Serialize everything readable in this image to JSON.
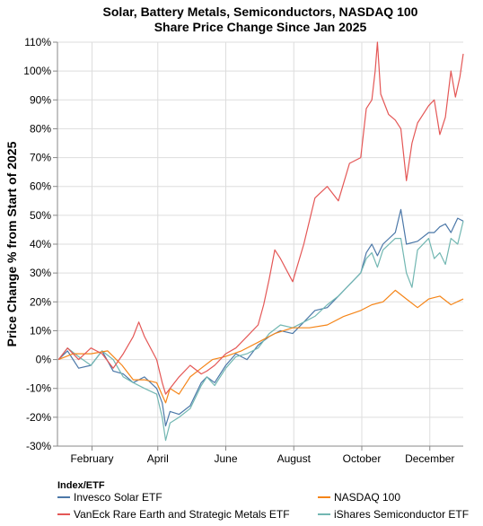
{
  "chart_data": {
    "type": "line",
    "title": "Solar, Battery Metals, Semiconductors, NASDAQ 100",
    "subtitle": "Share Price Change Since Jan 2025",
    "ylabel": "Price Change % from Start of 2025",
    "xlabel": "",
    "ylim": [
      -30,
      110
    ],
    "y_ticks": [
      -30,
      -20,
      -10,
      0,
      10,
      20,
      30,
      40,
      50,
      60,
      70,
      80,
      90,
      100,
      110
    ],
    "y_tick_labels": [
      "-30%",
      "-20%",
      "-10%",
      "0%",
      "10%",
      "20%",
      "30%",
      "40%",
      "50%",
      "60%",
      "70%",
      "80%",
      "90%",
      "100%",
      "110%"
    ],
    "x_domain": [
      "2025-01-01",
      "2025-12-31"
    ],
    "x_ticks": [
      {
        "date": "2025-02-01",
        "label": "February"
      },
      {
        "date": "2025-04-01",
        "label": "April"
      },
      {
        "date": "2025-06-01",
        "label": "June"
      },
      {
        "date": "2025-08-01",
        "label": "August"
      },
      {
        "date": "2025-10-01",
        "label": "October"
      },
      {
        "date": "2025-12-01",
        "label": "December"
      }
    ],
    "grid": true,
    "legend_title": "Index/ETF",
    "legend_position": "bottom",
    "series": [
      {
        "name": "Invesco Solar ETF",
        "color": "#4c78a8",
        "points": [
          [
            "2025-01-02",
            0
          ],
          [
            "2025-01-10",
            3
          ],
          [
            "2025-01-20",
            -3
          ],
          [
            "2025-01-31",
            -2
          ],
          [
            "2025-02-10",
            3
          ],
          [
            "2025-02-20",
            -4
          ],
          [
            "2025-03-01",
            -5
          ],
          [
            "2025-03-10",
            -8
          ],
          [
            "2025-03-20",
            -6
          ],
          [
            "2025-03-31",
            -10
          ],
          [
            "2025-04-05",
            -15
          ],
          [
            "2025-04-08",
            -23
          ],
          [
            "2025-04-12",
            -18
          ],
          [
            "2025-04-20",
            -19
          ],
          [
            "2025-04-30",
            -16
          ],
          [
            "2025-05-10",
            -8
          ],
          [
            "2025-05-15",
            -6
          ],
          [
            "2025-05-22",
            -8
          ],
          [
            "2025-06-01",
            -2
          ],
          [
            "2025-06-10",
            2
          ],
          [
            "2025-06-20",
            0
          ],
          [
            "2025-06-30",
            5
          ],
          [
            "2025-07-10",
            8
          ],
          [
            "2025-07-20",
            10
          ],
          [
            "2025-07-31",
            9
          ],
          [
            "2025-08-10",
            13
          ],
          [
            "2025-08-20",
            17
          ],
          [
            "2025-08-31",
            18
          ],
          [
            "2025-09-10",
            22
          ],
          [
            "2025-09-20",
            26
          ],
          [
            "2025-09-30",
            30
          ],
          [
            "2025-10-05",
            37
          ],
          [
            "2025-10-10",
            40
          ],
          [
            "2025-10-15",
            36
          ],
          [
            "2025-10-20",
            40
          ],
          [
            "2025-10-31",
            44
          ],
          [
            "2025-11-05",
            52
          ],
          [
            "2025-11-10",
            40
          ],
          [
            "2025-11-20",
            41
          ],
          [
            "2025-11-30",
            44
          ],
          [
            "2025-12-05",
            44
          ],
          [
            "2025-12-10",
            46
          ],
          [
            "2025-12-15",
            47
          ],
          [
            "2025-12-20",
            44
          ],
          [
            "2025-12-26",
            49
          ],
          [
            "2025-12-31",
            48
          ]
        ]
      },
      {
        "name": "VanEck Rare Earth and Strategic Metals ETF",
        "color": "#e45756",
        "points": [
          [
            "2025-01-02",
            0
          ],
          [
            "2025-01-10",
            4
          ],
          [
            "2025-01-20",
            0
          ],
          [
            "2025-01-31",
            4
          ],
          [
            "2025-02-10",
            2
          ],
          [
            "2025-02-20",
            -3
          ],
          [
            "2025-03-01",
            2
          ],
          [
            "2025-03-10",
            8
          ],
          [
            "2025-03-15",
            13
          ],
          [
            "2025-03-20",
            8
          ],
          [
            "2025-03-31",
            0
          ],
          [
            "2025-04-05",
            -8
          ],
          [
            "2025-04-08",
            -12
          ],
          [
            "2025-04-12",
            -10
          ],
          [
            "2025-04-20",
            -6
          ],
          [
            "2025-04-30",
            -2
          ],
          [
            "2025-05-10",
            -5
          ],
          [
            "2025-05-15",
            -4
          ],
          [
            "2025-05-22",
            -2
          ],
          [
            "2025-06-01",
            2
          ],
          [
            "2025-06-10",
            4
          ],
          [
            "2025-06-20",
            8
          ],
          [
            "2025-06-30",
            12
          ],
          [
            "2025-07-05",
            19
          ],
          [
            "2025-07-10",
            28
          ],
          [
            "2025-07-15",
            38
          ],
          [
            "2025-07-20",
            35
          ],
          [
            "2025-07-31",
            27
          ],
          [
            "2025-08-10",
            40
          ],
          [
            "2025-08-20",
            56
          ],
          [
            "2025-08-31",
            60
          ],
          [
            "2025-09-10",
            55
          ],
          [
            "2025-09-20",
            68
          ],
          [
            "2025-09-30",
            70
          ],
          [
            "2025-10-05",
            87
          ],
          [
            "2025-10-10",
            90
          ],
          [
            "2025-10-13",
            100
          ],
          [
            "2025-10-15",
            110
          ],
          [
            "2025-10-18",
            92
          ],
          [
            "2025-10-25",
            85
          ],
          [
            "2025-10-31",
            83
          ],
          [
            "2025-11-05",
            80
          ],
          [
            "2025-11-10",
            62
          ],
          [
            "2025-11-15",
            75
          ],
          [
            "2025-11-20",
            82
          ],
          [
            "2025-11-30",
            88
          ],
          [
            "2025-12-05",
            90
          ],
          [
            "2025-12-10",
            78
          ],
          [
            "2025-12-15",
            84
          ],
          [
            "2025-12-20",
            100
          ],
          [
            "2025-12-24",
            91
          ],
          [
            "2025-12-28",
            98
          ],
          [
            "2025-12-31",
            106
          ]
        ]
      },
      {
        "name": "NASDAQ 100",
        "color": "#f58518",
        "points": [
          [
            "2025-01-02",
            0
          ],
          [
            "2025-01-15",
            2
          ],
          [
            "2025-01-31",
            2
          ],
          [
            "2025-02-15",
            3
          ],
          [
            "2025-02-28",
            -2
          ],
          [
            "2025-03-10",
            -7
          ],
          [
            "2025-03-20",
            -7
          ],
          [
            "2025-03-31",
            -8
          ],
          [
            "2025-04-08",
            -15
          ],
          [
            "2025-04-12",
            -10
          ],
          [
            "2025-04-20",
            -12
          ],
          [
            "2025-04-30",
            -6
          ],
          [
            "2025-05-10",
            -3
          ],
          [
            "2025-05-20",
            0
          ],
          [
            "2025-05-31",
            1
          ],
          [
            "2025-06-15",
            3
          ],
          [
            "2025-06-30",
            6
          ],
          [
            "2025-07-15",
            9
          ],
          [
            "2025-07-31",
            11
          ],
          [
            "2025-08-15",
            11
          ],
          [
            "2025-08-31",
            12
          ],
          [
            "2025-09-15",
            15
          ],
          [
            "2025-09-30",
            17
          ],
          [
            "2025-10-10",
            19
          ],
          [
            "2025-10-20",
            20
          ],
          [
            "2025-10-31",
            24
          ],
          [
            "2025-11-10",
            21
          ],
          [
            "2025-11-20",
            18
          ],
          [
            "2025-11-30",
            21
          ],
          [
            "2025-12-10",
            22
          ],
          [
            "2025-12-20",
            19
          ],
          [
            "2025-12-31",
            21
          ]
        ]
      },
      {
        "name": "iShares Semiconductor ETF",
        "color": "#72b7b2",
        "points": [
          [
            "2025-01-02",
            0
          ],
          [
            "2025-01-10",
            4
          ],
          [
            "2025-01-20",
            1
          ],
          [
            "2025-01-31",
            -2
          ],
          [
            "2025-02-10",
            3
          ],
          [
            "2025-02-20",
            0
          ],
          [
            "2025-03-01",
            -6
          ],
          [
            "2025-03-10",
            -8
          ],
          [
            "2025-03-20",
            -10
          ],
          [
            "2025-03-31",
            -12
          ],
          [
            "2025-04-05",
            -20
          ],
          [
            "2025-04-08",
            -28
          ],
          [
            "2025-04-12",
            -22
          ],
          [
            "2025-04-20",
            -20
          ],
          [
            "2025-04-30",
            -17
          ],
          [
            "2025-05-10",
            -9
          ],
          [
            "2025-05-15",
            -6
          ],
          [
            "2025-05-22",
            -9
          ],
          [
            "2025-06-01",
            -3
          ],
          [
            "2025-06-10",
            1
          ],
          [
            "2025-06-20",
            2
          ],
          [
            "2025-06-30",
            4
          ],
          [
            "2025-07-10",
            9
          ],
          [
            "2025-07-20",
            12
          ],
          [
            "2025-07-31",
            11
          ],
          [
            "2025-08-10",
            13
          ],
          [
            "2025-08-20",
            15
          ],
          [
            "2025-08-31",
            19
          ],
          [
            "2025-09-10",
            22
          ],
          [
            "2025-09-20",
            26
          ],
          [
            "2025-09-30",
            30
          ],
          [
            "2025-10-05",
            35
          ],
          [
            "2025-10-10",
            37
          ],
          [
            "2025-10-15",
            32
          ],
          [
            "2025-10-20",
            38
          ],
          [
            "2025-10-31",
            42
          ],
          [
            "2025-11-05",
            42
          ],
          [
            "2025-11-10",
            30
          ],
          [
            "2025-11-15",
            25
          ],
          [
            "2025-11-20",
            38
          ],
          [
            "2025-11-30",
            42
          ],
          [
            "2025-12-05",
            35
          ],
          [
            "2025-12-10",
            37
          ],
          [
            "2025-12-15",
            33
          ],
          [
            "2025-12-20",
            42
          ],
          [
            "2025-12-26",
            40
          ],
          [
            "2025-12-31",
            48
          ]
        ]
      }
    ]
  }
}
